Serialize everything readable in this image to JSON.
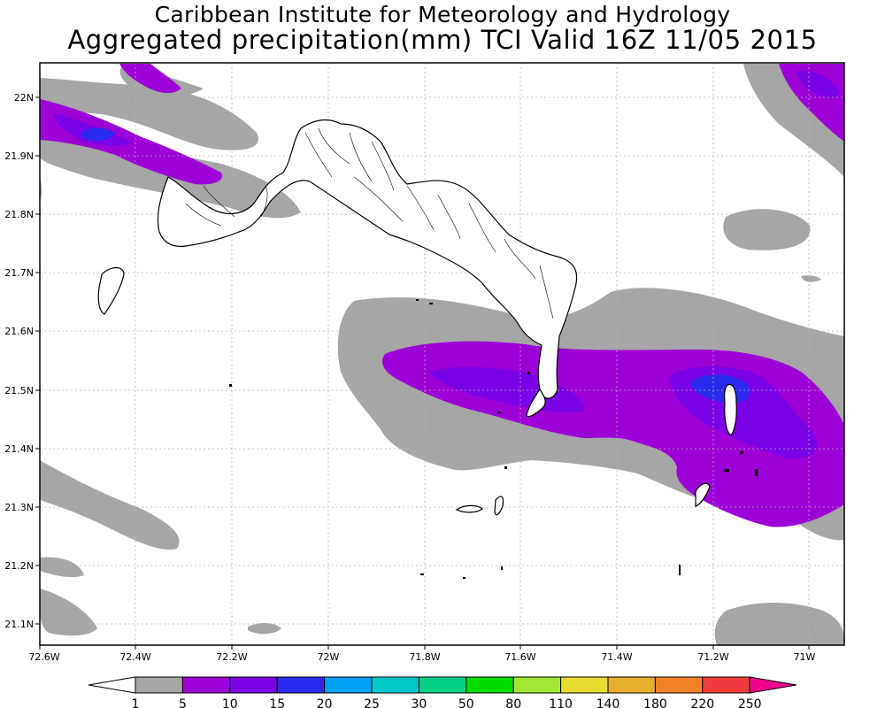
{
  "header": {
    "institute": "Caribbean Institute for Meteorology and Hydrology",
    "product": "Aggregated precipitation(mm) TCI Valid 16Z 11/05 2015"
  },
  "axes": {
    "lon_ticks": [
      "72.6W",
      "72.4W",
      "72.2W",
      "72W",
      "71.8W",
      "71.6W",
      "71.4W",
      "71.2W",
      "71W"
    ],
    "lat_ticks": [
      "22N",
      "21.9N",
      "21.8N",
      "21.7N",
      "21.6N",
      "21.5N",
      "21.4N",
      "21.3N",
      "21.2N",
      "21.1N"
    ],
    "lon_range": [
      -72.6,
      -70.93
    ],
    "lat_range": [
      21.06,
      22.06
    ],
    "grid": true
  },
  "colorbar": {
    "levels": [
      "1",
      "5",
      "10",
      "15",
      "20",
      "25",
      "30",
      "50",
      "80",
      "110",
      "140",
      "180",
      "220",
      "250"
    ],
    "colors": [
      "#a6a6a6",
      "#9d00d7",
      "#7a00e6",
      "#2b2bf0",
      "#00a0f5",
      "#00c8c8",
      "#00d084",
      "#00dc00",
      "#a0e632",
      "#e6dc32",
      "#e6af2d",
      "#f08228",
      "#f03c3c",
      "#f0008c"
    ],
    "below_color": "#ffffff"
  },
  "legend_colors": {
    "light": "#a6a6a6",
    "moderate": "#9d00d7",
    "heavy": "#7a00e6",
    "very_heavy": "#2b2bf0"
  }
}
